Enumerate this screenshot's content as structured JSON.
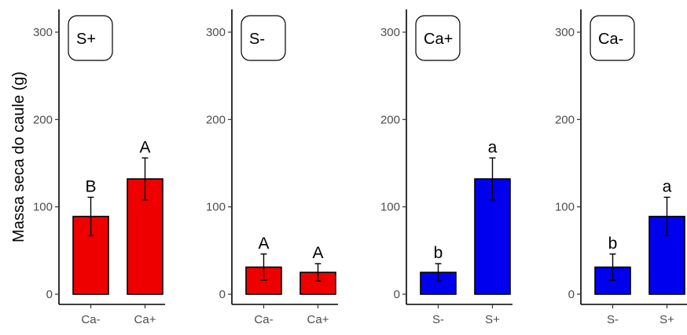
{
  "chart_data": {
    "type": "bar",
    "ylabel": "Massa seca do caule (g)",
    "ylim": [
      0,
      300
    ],
    "yticks": [
      0,
      100,
      200,
      300
    ],
    "grid": false,
    "panels": [
      {
        "label": "S+",
        "color": "#ee0000",
        "categories": [
          "Ca-",
          "Ca+"
        ],
        "values": [
          89,
          132
        ],
        "errors": [
          22,
          24
        ],
        "letters": [
          "B",
          "A"
        ]
      },
      {
        "label": "S-",
        "color": "#ee0000",
        "categories": [
          "Ca-",
          "Ca+"
        ],
        "values": [
          31,
          25
        ],
        "errors": [
          15,
          10
        ],
        "letters": [
          "A",
          "A"
        ]
      },
      {
        "label": "Ca+",
        "color": "#0000ee",
        "categories": [
          "S-",
          "S+"
        ],
        "values": [
          25,
          132
        ],
        "errors": [
          10,
          24
        ],
        "letters": [
          "b",
          "a"
        ]
      },
      {
        "label": "Ca-",
        "color": "#0000ee",
        "categories": [
          "S-",
          "S+"
        ],
        "values": [
          31,
          89
        ],
        "errors": [
          15,
          22
        ],
        "letters": [
          "b",
          "a"
        ]
      }
    ]
  }
}
